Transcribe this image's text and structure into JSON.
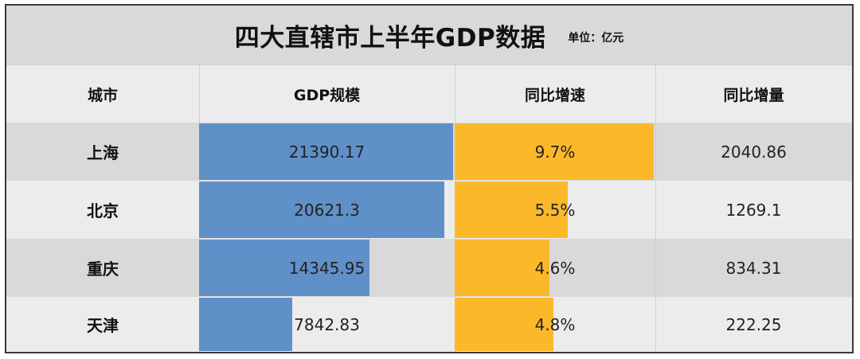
{
  "title": "四大直辖市上半年GDP数据",
  "unit_label": "单位：亿元",
  "headers": [
    "城市",
    "GDP规模",
    "同比增速",
    "同比增量"
  ],
  "colors": {
    "gdp_bar": "#6090c8",
    "rate_bar": "#fbb92a",
    "header_bg": "#d9d9d9"
  },
  "rows": [
    {
      "city": "上海",
      "gdp": "21390.17",
      "rate": "9.7%",
      "increment": "2040.86"
    },
    {
      "city": "北京",
      "gdp": "20621.3",
      "rate": "5.5%",
      "increment": "1269.1"
    },
    {
      "city": "重庆",
      "gdp": "14345.95",
      "rate": "4.6%",
      "increment": "834.31"
    },
    {
      "city": "天津",
      "gdp": "7842.83",
      "rate": "4.8%",
      "increment": "222.25"
    }
  ],
  "chart_data": {
    "type": "table",
    "title": "四大直辖市上半年GDP数据",
    "unit": "单位：亿元",
    "columns": [
      "城市",
      "GDP规模",
      "同比增速",
      "同比增量"
    ],
    "categories": [
      "上海",
      "北京",
      "重庆",
      "天津"
    ],
    "series": [
      {
        "name": "GDP规模",
        "values": [
          21390.17,
          20621.3,
          14345.95,
          7842.83
        ]
      },
      {
        "name": "同比增速",
        "values": [
          9.7,
          5.5,
          4.6,
          4.8
        ]
      },
      {
        "name": "同比增量",
        "values": [
          2040.86,
          1269.1,
          834.31,
          222.25
        ]
      }
    ]
  }
}
